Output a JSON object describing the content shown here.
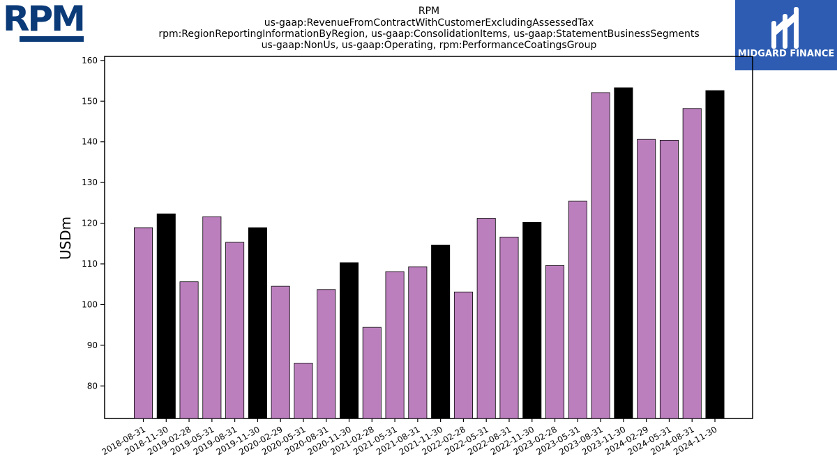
{
  "logos": {
    "company": "RPM",
    "brand": "MIDGARD FINANCE"
  },
  "colors": {
    "normal_bar": "#bc7fbe",
    "quarter_end_bar": "#000000",
    "brand_box": "#2d5cb2",
    "rpm_blue": "#0b3a78"
  },
  "chart_data": {
    "type": "bar",
    "title": [
      "RPM",
      "us-gaap:RevenueFromContractWithCustomerExcludingAssessedTax",
      "rpm:RegionReportingInformationByRegion, us-gaap:ConsolidationItems, us-gaap:StatementBusinessSegments",
      "us-gaap:NonUs, us-gaap:Operating, rpm:PerformanceCoatingsGroup"
    ],
    "xlabel": "",
    "ylabel": "USDm",
    "ylim": [
      72,
      161
    ],
    "yticks": [
      80,
      90,
      100,
      110,
      120,
      130,
      140,
      150,
      160
    ],
    "grid": false,
    "categories": [
      "2018-08-31",
      "2018-11-30",
      "2019-02-28",
      "2019-05-31",
      "2019-08-31",
      "2019-11-30",
      "2020-02-29",
      "2020-05-31",
      "2020-08-31",
      "2020-11-30",
      "2021-02-28",
      "2021-05-31",
      "2021-08-31",
      "2021-11-30",
      "2022-02-28",
      "2022-05-31",
      "2022-08-31",
      "2022-11-30",
      "2023-02-28",
      "2023-05-31",
      "2023-08-31",
      "2023-11-30",
      "2024-02-29",
      "2024-05-31",
      "2024-08-31",
      "2024-11-30"
    ],
    "values": [
      118.9,
      122.3,
      105.6,
      121.6,
      115.3,
      118.9,
      104.5,
      85.6,
      103.7,
      110.3,
      94.4,
      108.1,
      109.3,
      114.6,
      103.1,
      121.2,
      116.6,
      120.2,
      109.6,
      125.4,
      152.1,
      153.3,
      140.6,
      140.4,
      148.2,
      152.6
    ],
    "highlight": [
      false,
      true,
      false,
      false,
      false,
      true,
      false,
      false,
      false,
      true,
      false,
      false,
      false,
      true,
      false,
      false,
      false,
      true,
      false,
      false,
      false,
      true,
      false,
      false,
      false,
      true
    ]
  }
}
